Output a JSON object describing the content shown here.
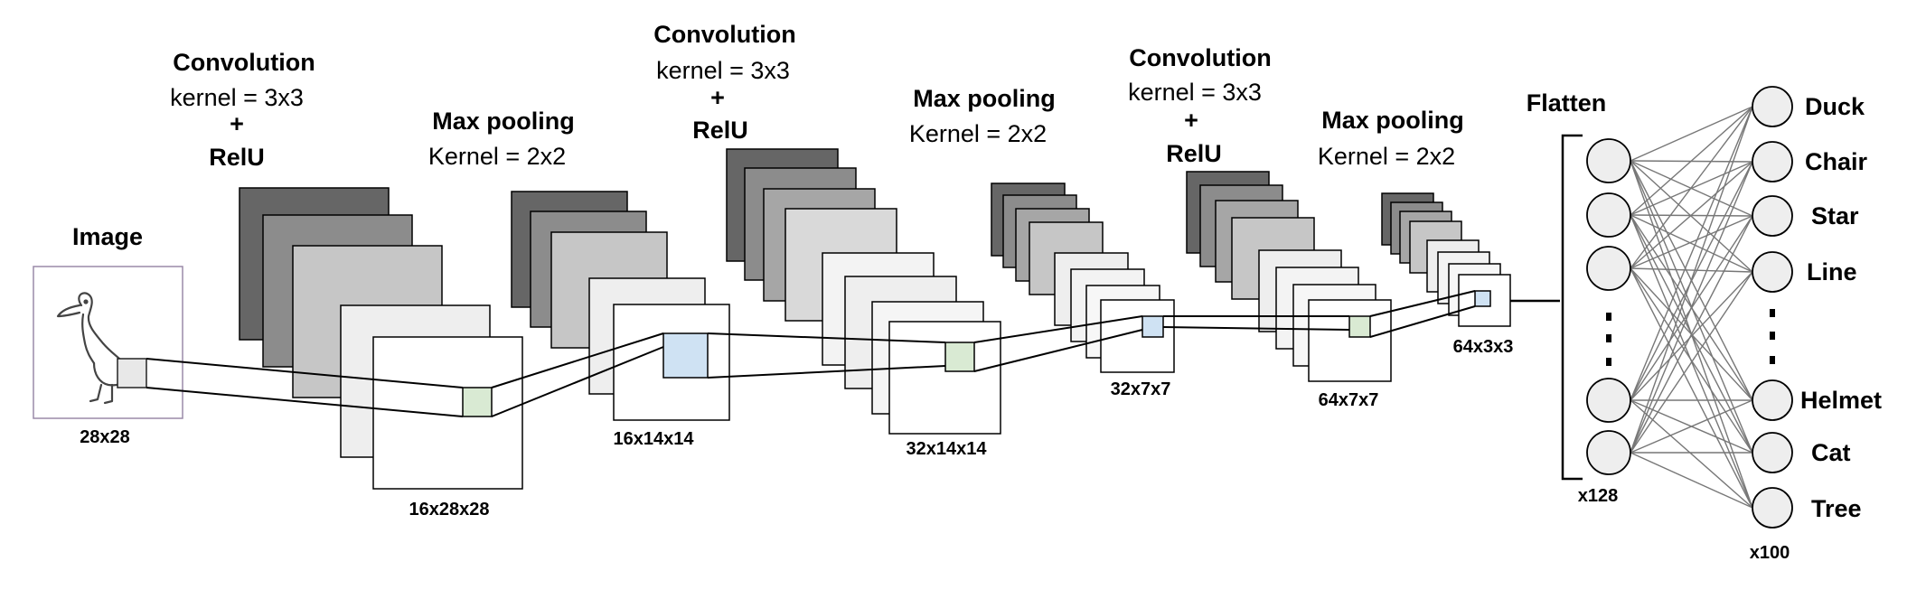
{
  "image_block": {
    "title": "Image",
    "dim": "28x28"
  },
  "conv1": {
    "title": "Convolution",
    "kernel": "kernel = 3x3",
    "plus": "+",
    "activation": "RelU",
    "dim": "16x28x28"
  },
  "pool1": {
    "title": "Max pooling",
    "kernel": "Kernel = 2x2",
    "dim": "16x14x14"
  },
  "conv2": {
    "title": "Convolution",
    "kernel": "kernel = 3x3",
    "plus": "+",
    "activation": "RelU",
    "dim": "32x14x14"
  },
  "pool2": {
    "title": "Max pooling",
    "kernel": "Kernel = 2x2",
    "dim": "32x7x7"
  },
  "conv3": {
    "title": "Convolution",
    "kernel": "kernel = 3x3",
    "plus": "+",
    "activation": "RelU",
    "dim": "64x7x7"
  },
  "pool3": {
    "title": "Max pooling",
    "kernel": "Kernel = 2x2",
    "dim": "64x3x3"
  },
  "flatten": {
    "title": "Flatten",
    "count": "x128"
  },
  "output": {
    "classes": [
      "Duck",
      "Chair",
      "Star",
      "Line",
      "Helmet",
      "Cat",
      "Tree"
    ],
    "count": "x100"
  },
  "colors": {
    "stack": [
      "#666666",
      "#8c8c8c",
      "#a6a6a6",
      "#c6c6c6",
      "#d9d9d9",
      "#eeeeee",
      "#ffffff"
    ],
    "highlight_green": "#d9ead3",
    "highlight_blue": "#cfe2f3",
    "node_fill": "#eeeeee",
    "edge": "#777777"
  }
}
